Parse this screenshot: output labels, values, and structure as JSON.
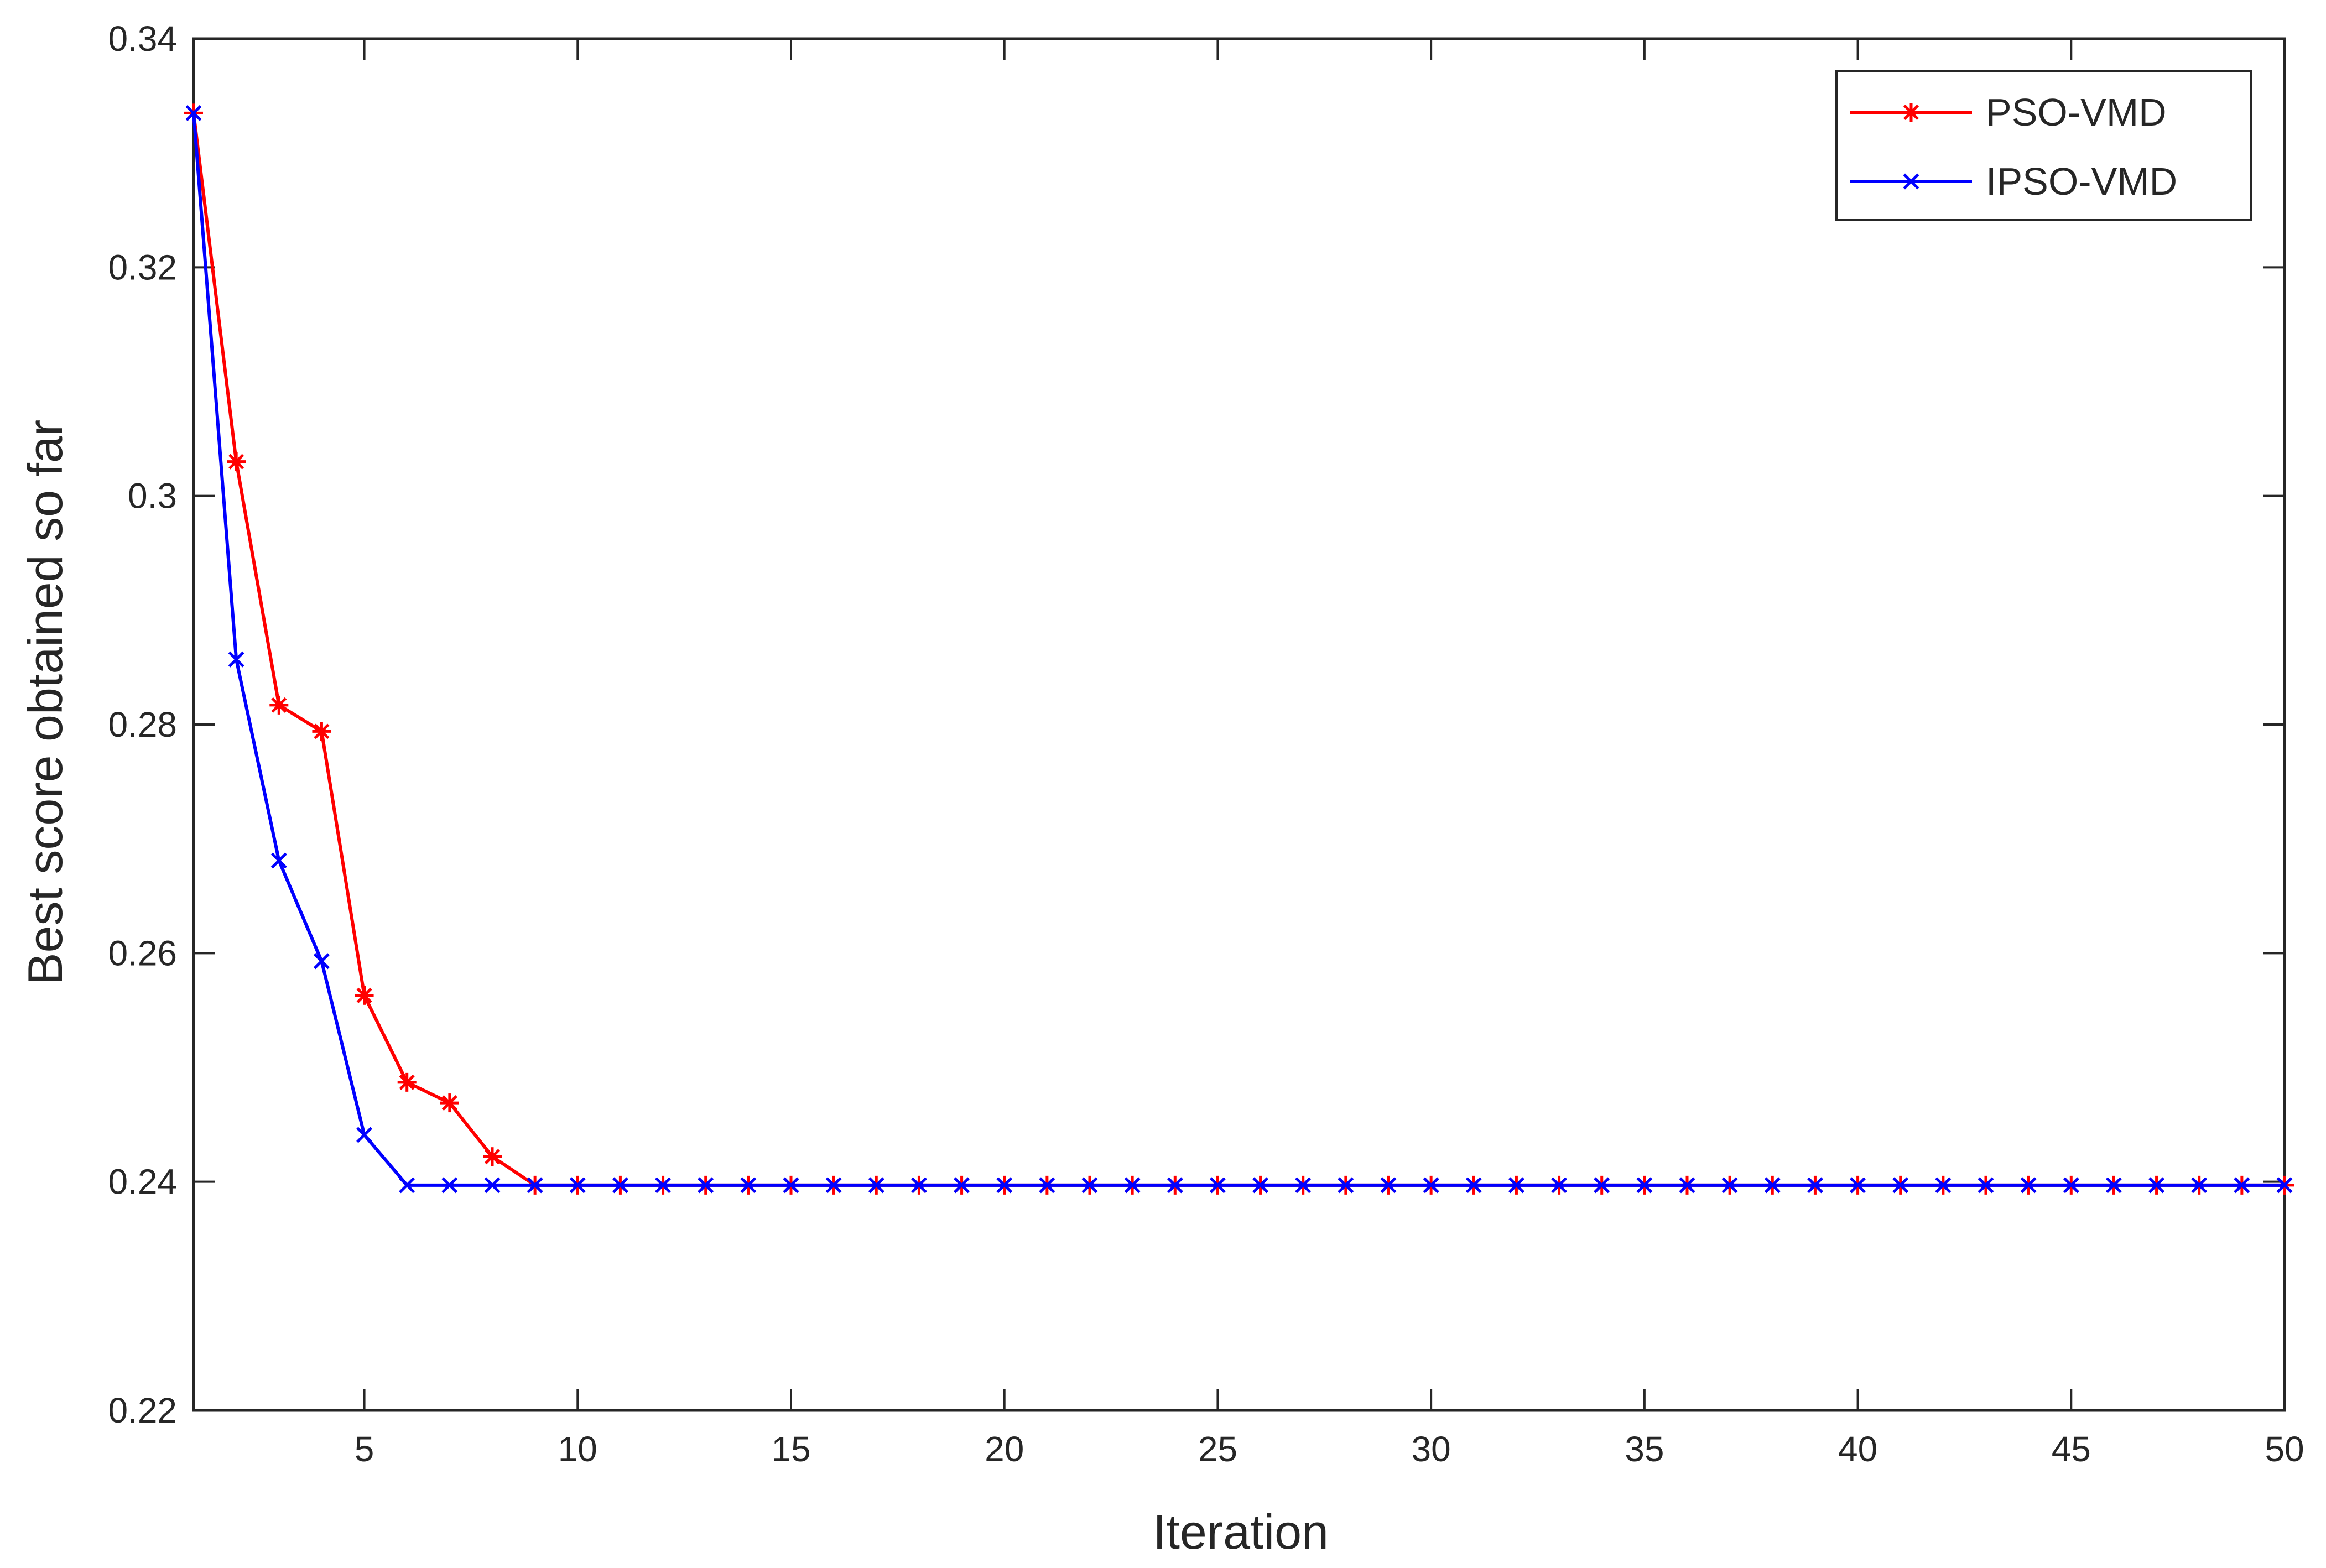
{
  "chart_data": {
    "type": "line",
    "title": "",
    "xlabel": "Iteration",
    "ylabel": "Best score obtained so far",
    "xlim": [
      1,
      50
    ],
    "ylim": [
      0.22,
      0.34
    ],
    "xticks": [
      5,
      10,
      15,
      20,
      25,
      30,
      35,
      40,
      45,
      50
    ],
    "xtick_labels": [
      "5",
      "10",
      "15",
      "20",
      "25",
      "30",
      "35",
      "40",
      "45",
      "50"
    ],
    "yticks": [
      0.22,
      0.24,
      0.26,
      0.28,
      0.3,
      0.32,
      0.34
    ],
    "ytick_labels": [
      "0.22",
      "0.24",
      "0.26",
      "0.28",
      "0.3",
      "0.32",
      "0.34"
    ],
    "grid": false,
    "legend": {
      "position": "top-right"
    },
    "x": [
      1,
      2,
      3,
      4,
      5,
      6,
      7,
      8,
      9,
      10,
      11,
      12,
      13,
      14,
      15,
      16,
      17,
      18,
      19,
      20,
      21,
      22,
      23,
      24,
      25,
      26,
      27,
      28,
      29,
      30,
      31,
      32,
      33,
      34,
      35,
      36,
      37,
      38,
      39,
      40,
      41,
      42,
      43,
      44,
      45,
      46,
      47,
      48,
      49,
      50
    ],
    "series": [
      {
        "name": "PSO-VMD",
        "color": "#ff0000",
        "marker": "asterisk",
        "values": [
          0.3335,
          0.303,
          0.2817,
          0.2794,
          0.2563,
          0.2487,
          0.2469,
          0.2422,
          0.2397,
          0.2397,
          0.2397,
          0.2397,
          0.2397,
          0.2397,
          0.2397,
          0.2397,
          0.2397,
          0.2397,
          0.2397,
          0.2397,
          0.2397,
          0.2397,
          0.2397,
          0.2397,
          0.2397,
          0.2397,
          0.2397,
          0.2397,
          0.2397,
          0.2397,
          0.2397,
          0.2397,
          0.2397,
          0.2397,
          0.2397,
          0.2397,
          0.2397,
          0.2397,
          0.2397,
          0.2397,
          0.2397,
          0.2397,
          0.2397,
          0.2397,
          0.2397,
          0.2397,
          0.2397,
          0.2397,
          0.2397,
          0.2397
        ]
      },
      {
        "name": "IPSO-VMD",
        "color": "#0000ff",
        "marker": "x",
        "values": [
          0.3335,
          0.2857,
          0.2681,
          0.2593,
          0.2441,
          0.2397,
          0.2397,
          0.2397,
          0.2397,
          0.2397,
          0.2397,
          0.2397,
          0.2397,
          0.2397,
          0.2397,
          0.2397,
          0.2397,
          0.2397,
          0.2397,
          0.2397,
          0.2397,
          0.2397,
          0.2397,
          0.2397,
          0.2397,
          0.2397,
          0.2397,
          0.2397,
          0.2397,
          0.2397,
          0.2397,
          0.2397,
          0.2397,
          0.2397,
          0.2397,
          0.2397,
          0.2397,
          0.2397,
          0.2397,
          0.2397,
          0.2397,
          0.2397,
          0.2397,
          0.2397,
          0.2397,
          0.2397,
          0.2397,
          0.2397,
          0.2397,
          0.2397
        ]
      }
    ]
  }
}
